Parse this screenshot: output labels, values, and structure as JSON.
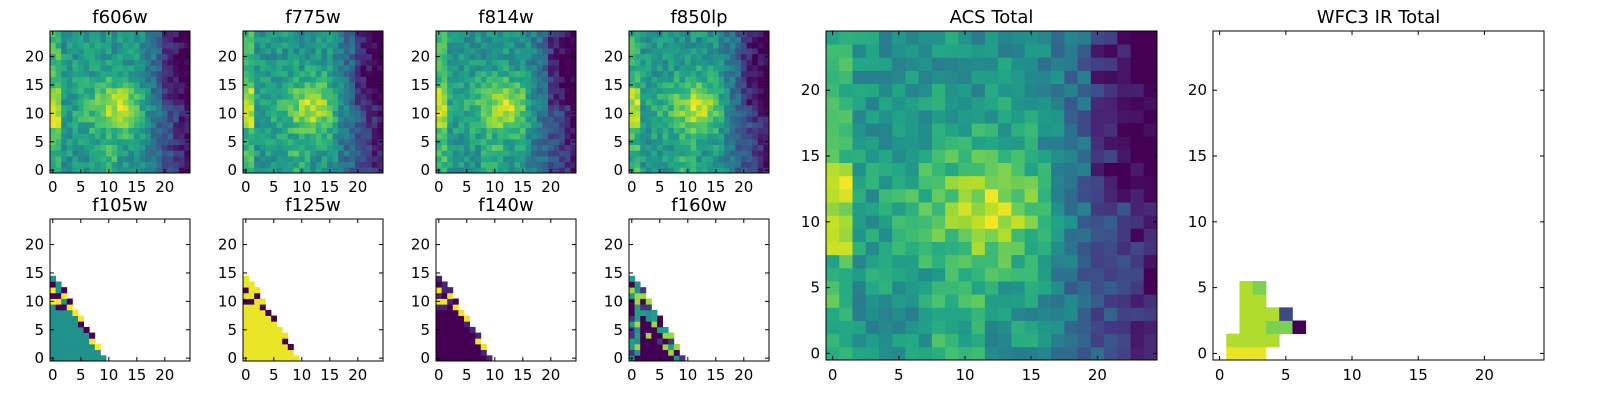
{
  "chart_data": [
    {
      "id": "f606w",
      "type": "heatmap",
      "title": "f606w",
      "colormap": "viridis",
      "grid": "25x25",
      "xlim": [
        -0.5,
        24.5
      ],
      "ylim": [
        -0.5,
        24.5
      ],
      "xticks": [
        0,
        5,
        10,
        15,
        20
      ],
      "yticks": [
        0,
        5,
        10,
        15,
        20
      ],
      "pattern": "acs",
      "seed": 11
    },
    {
      "id": "f775w",
      "type": "heatmap",
      "title": "f775w",
      "colormap": "viridis",
      "grid": "25x25",
      "xlim": [
        -0.5,
        24.5
      ],
      "ylim": [
        -0.5,
        24.5
      ],
      "xticks": [
        0,
        5,
        10,
        15,
        20
      ],
      "yticks": [
        0,
        5,
        10,
        15,
        20
      ],
      "pattern": "acs",
      "seed": 23
    },
    {
      "id": "f814w",
      "type": "heatmap",
      "title": "f814w",
      "colormap": "viridis",
      "grid": "25x25",
      "xlim": [
        -0.5,
        24.5
      ],
      "ylim": [
        -0.5,
        24.5
      ],
      "xticks": [
        0,
        5,
        10,
        15,
        20
      ],
      "yticks": [
        0,
        5,
        10,
        15,
        20
      ],
      "pattern": "acs",
      "seed": 37
    },
    {
      "id": "f850lp",
      "type": "heatmap",
      "title": "f850lp",
      "colormap": "viridis",
      "grid": "25x25",
      "xlim": [
        -0.5,
        24.5
      ],
      "ylim": [
        -0.5,
        24.5
      ],
      "xticks": [
        0,
        5,
        10,
        15,
        20
      ],
      "yticks": [
        0,
        5,
        10,
        15,
        20
      ],
      "pattern": "acs",
      "seed": 41
    },
    {
      "id": "f105w",
      "type": "heatmap",
      "title": "f105w",
      "colormap": "viridis",
      "grid": "25x25",
      "xlim": [
        -0.5,
        24.5
      ],
      "ylim": [
        -0.5,
        24.5
      ],
      "xticks": [
        0,
        5,
        10,
        15,
        20
      ],
      "yticks": [
        0,
        5,
        10,
        15,
        20
      ],
      "pattern": "triangle",
      "fill_value": 0.5,
      "edge_values": [
        1.0,
        0.0,
        1.0,
        0.0,
        0.5
      ],
      "seed": 5
    },
    {
      "id": "f125w",
      "type": "heatmap",
      "title": "f125w",
      "colormap": "viridis",
      "grid": "25x25",
      "xlim": [
        -0.5,
        24.5
      ],
      "ylim": [
        -0.5,
        24.5
      ],
      "xticks": [
        0,
        5,
        10,
        15,
        20
      ],
      "yticks": [
        0,
        5,
        10,
        15,
        20
      ],
      "pattern": "triangle",
      "fill_value": 0.97,
      "edge_values": [
        0.0,
        0.97,
        0.0,
        0.97,
        0.97
      ],
      "seed": 7
    },
    {
      "id": "f140w",
      "type": "heatmap",
      "title": "f140w",
      "colormap": "viridis",
      "grid": "25x25",
      "xlim": [
        -0.5,
        24.5
      ],
      "ylim": [
        -0.5,
        24.5
      ],
      "xticks": [
        0,
        5,
        10,
        15,
        20
      ],
      "yticks": [
        0,
        5,
        10,
        15,
        20
      ],
      "pattern": "triangle",
      "fill_value": 0.0,
      "edge_values": [
        0.98,
        0.1,
        0.98,
        0.0,
        0.1
      ],
      "seed": 9
    },
    {
      "id": "f160w",
      "type": "heatmap",
      "title": "f160w",
      "colormap": "viridis",
      "grid": "25x25",
      "xlim": [
        -0.5,
        24.5
      ],
      "ylim": [
        -0.5,
        24.5
      ],
      "xticks": [
        0,
        5,
        10,
        15,
        20
      ],
      "yticks": [
        0,
        5,
        10,
        15,
        20
      ],
      "pattern": "triangle_mixed",
      "fill_value": 0.0,
      "edge_values": [
        0.85,
        0.5,
        0.0,
        0.15,
        0.55
      ],
      "seed": 13
    },
    {
      "id": "acs_total",
      "type": "heatmap",
      "title": "ACS Total",
      "colormap": "viridis",
      "grid": "25x25",
      "xlim": [
        -0.5,
        24.5
      ],
      "ylim": [
        -0.5,
        24.5
      ],
      "xticks": [
        0,
        5,
        10,
        15,
        20
      ],
      "yticks": [
        0,
        5,
        10,
        15,
        20
      ],
      "pattern": "acs",
      "seed": 57
    },
    {
      "id": "wfc3_ir_total",
      "type": "heatmap",
      "title": "WFC3 IR Total",
      "colormap": "viridis",
      "grid": "25x25",
      "xlim": [
        -0.5,
        24.5
      ],
      "ylim": [
        -0.5,
        24.5
      ],
      "xticks": [
        0,
        5,
        10,
        15,
        20
      ],
      "yticks": [
        0,
        5,
        10,
        15,
        20
      ],
      "pattern": "sparse",
      "cells": [
        {
          "x": 1,
          "y": 0,
          "v": 0.97
        },
        {
          "x": 2,
          "y": 0,
          "v": 0.97
        },
        {
          "x": 3,
          "y": 0,
          "v": 0.97
        },
        {
          "x": 1,
          "y": 1,
          "v": 0.88
        },
        {
          "x": 2,
          "y": 1,
          "v": 0.88
        },
        {
          "x": 3,
          "y": 1,
          "v": 0.88
        },
        {
          "x": 4,
          "y": 1,
          "v": 0.88
        },
        {
          "x": 2,
          "y": 2,
          "v": 0.88
        },
        {
          "x": 3,
          "y": 2,
          "v": 0.88
        },
        {
          "x": 4,
          "y": 2,
          "v": 0.8
        },
        {
          "x": 5,
          "y": 2,
          "v": 0.8
        },
        {
          "x": 6,
          "y": 2,
          "v": 0.0
        },
        {
          "x": 2,
          "y": 3,
          "v": 0.88
        },
        {
          "x": 3,
          "y": 3,
          "v": 0.88
        },
        {
          "x": 4,
          "y": 3,
          "v": 0.88
        },
        {
          "x": 5,
          "y": 3,
          "v": 0.22
        },
        {
          "x": 2,
          "y": 4,
          "v": 0.88
        },
        {
          "x": 3,
          "y": 4,
          "v": 0.88
        },
        {
          "x": 2,
          "y": 5,
          "v": 0.88
        },
        {
          "x": 3,
          "y": 5,
          "v": 0.8
        }
      ]
    }
  ]
}
